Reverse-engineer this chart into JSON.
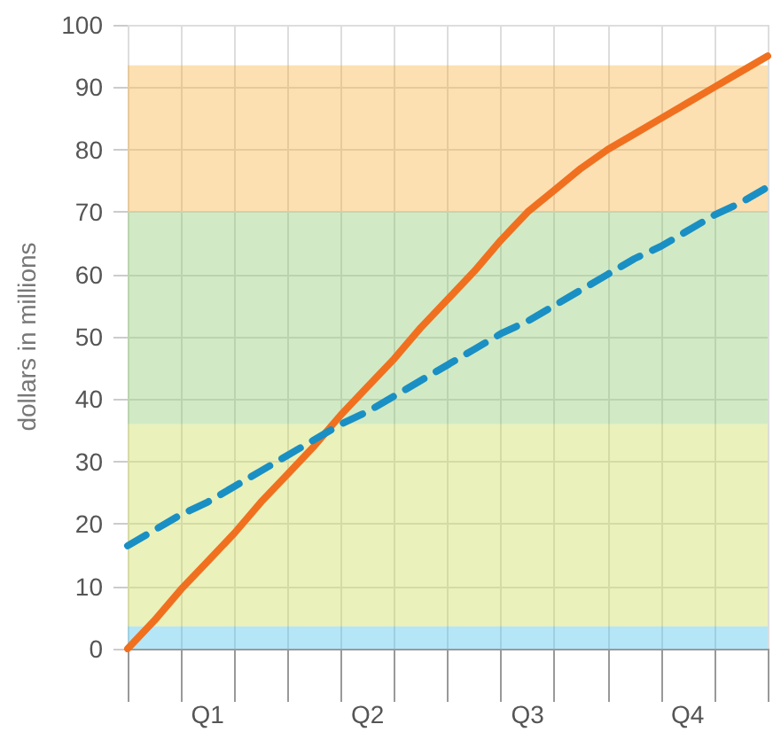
{
  "chart_data": {
    "type": "line",
    "ylabel": "dollars in millions",
    "categories": [
      null,
      null,
      null,
      "Q1",
      null,
      null,
      null,
      null,
      null,
      "Q2",
      null,
      null,
      null,
      null,
      null,
      "Q3",
      null,
      null,
      null,
      null,
      null,
      "Q4",
      null,
      null,
      null
    ],
    "ylim": [
      0,
      100
    ],
    "yticks": [
      0,
      10,
      20,
      30,
      40,
      50,
      60,
      70,
      80,
      90,
      100
    ],
    "grid": true,
    "marker": "none",
    "series": [
      {
        "color": "#f07020",
        "line_style": "solid",
        "values": [
          0,
          4.5,
          9.5,
          14,
          18.5,
          23.5,
          28,
          32.5,
          37.5,
          42,
          46.5,
          51.5,
          56,
          60.5,
          65.5,
          70,
          73.5,
          77,
          80,
          82.5,
          85,
          87.5,
          90,
          92.5,
          95
        ]
      },
      {
        "color": "#1a8fc4",
        "line_style": "dashed",
        "values": [
          16.5,
          19,
          21.5,
          23.5,
          26,
          28.5,
          31,
          33.5,
          36,
          38,
          40.5,
          43,
          45.5,
          48,
          50.5,
          52.5,
          55,
          57.5,
          60,
          62.5,
          64.5,
          67,
          69.5,
          71.5,
          74
        ]
      }
    ],
    "bands": [
      {
        "axis": "y",
        "from": 0,
        "to": 3.6,
        "color": "#29b6e8"
      },
      {
        "axis": "y",
        "from": 3.6,
        "to": 36,
        "color": "#c5d83a"
      },
      {
        "axis": "y",
        "from": 36,
        "to": 70,
        "color": "#7cc35a"
      },
      {
        "axis": "y",
        "from": 70,
        "to": 93.5,
        "color": "#f5a623"
      }
    ]
  }
}
